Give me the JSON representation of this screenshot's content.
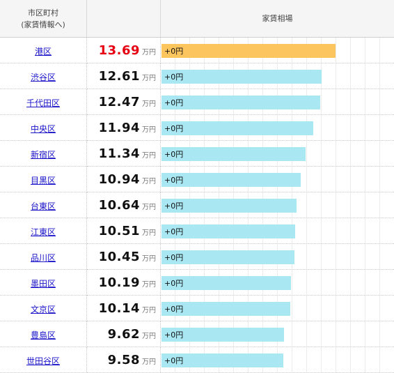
{
  "header": {
    "ward_line1": "市区町村",
    "ward_line2": "(家賃情報へ)",
    "rent_col": "",
    "bar_col": "家賃相場"
  },
  "unit": "万円",
  "rows": [
    {
      "ward": "港区",
      "rent": "13.69",
      "value": 13.69,
      "delta": "+0円",
      "highlight": true
    },
    {
      "ward": "渋谷区",
      "rent": "12.61",
      "value": 12.61,
      "delta": "+0円",
      "highlight": false
    },
    {
      "ward": "千代田区",
      "rent": "12.47",
      "value": 12.47,
      "delta": "+0円",
      "highlight": false
    },
    {
      "ward": "中央区",
      "rent": "11.94",
      "value": 11.94,
      "delta": "+0円",
      "highlight": false
    },
    {
      "ward": "新宿区",
      "rent": "11.34",
      "value": 11.34,
      "delta": "+0円",
      "highlight": false
    },
    {
      "ward": "目黒区",
      "rent": "10.94",
      "value": 10.94,
      "delta": "+0円",
      "highlight": false
    },
    {
      "ward": "台東区",
      "rent": "10.64",
      "value": 10.64,
      "delta": "+0円",
      "highlight": false
    },
    {
      "ward": "江東区",
      "rent": "10.51",
      "value": 10.51,
      "delta": "+0円",
      "highlight": false
    },
    {
      "ward": "品川区",
      "rent": "10.45",
      "value": 10.45,
      "delta": "+0円",
      "highlight": false
    },
    {
      "ward": "墨田区",
      "rent": "10.19",
      "value": 10.19,
      "delta": "+0円",
      "highlight": false
    },
    {
      "ward": "文京区",
      "rent": "10.14",
      "value": 10.14,
      "delta": "+0円",
      "highlight": false
    },
    {
      "ward": "豊島区",
      "rent": "9.62",
      "value": 9.62,
      "delta": "+0円",
      "highlight": false
    },
    {
      "ward": "世田谷区",
      "rent": "9.58",
      "value": 9.58,
      "delta": "+0円",
      "highlight": false
    }
  ],
  "colors": {
    "top_value": "#e60012",
    "top_bar": "#fdc55e",
    "bar": "#a9e8f3",
    "link": "#1a13c9"
  }
}
